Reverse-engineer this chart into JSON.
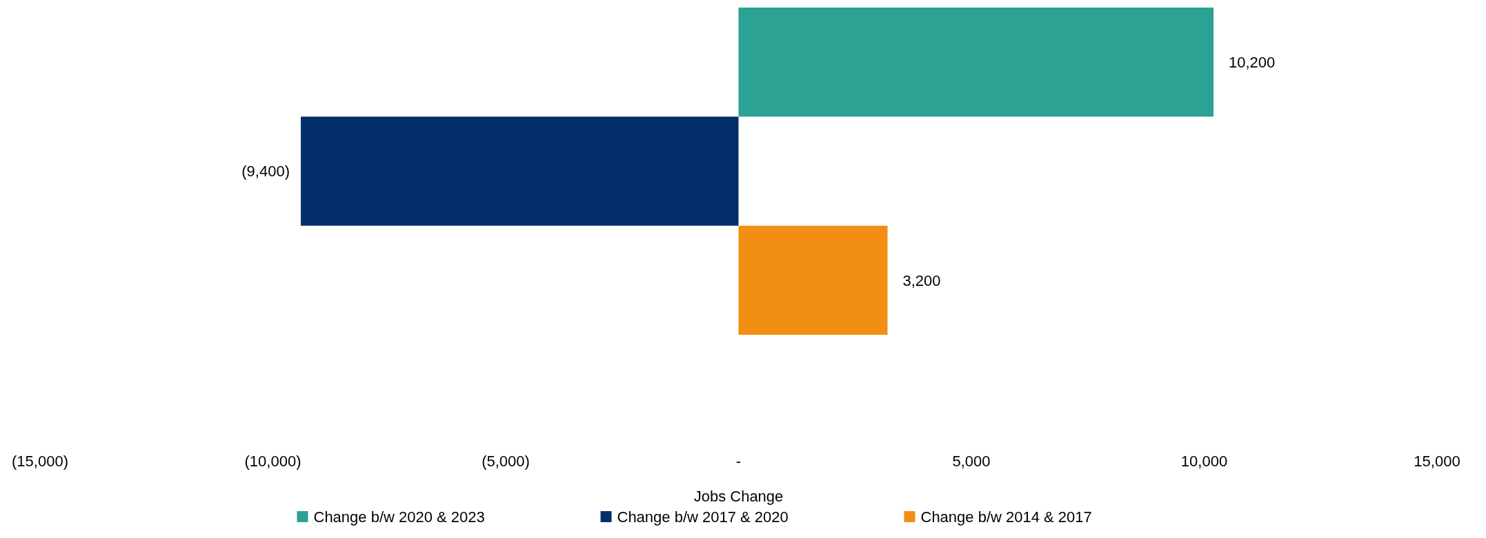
{
  "chart_data": {
    "type": "bar",
    "orientation": "horizontal",
    "xlabel": "Jobs Change",
    "categories": [
      null
    ],
    "series": [
      {
        "name": "Change b/w 2020 & 2023",
        "color": "#2ba293",
        "values": [
          10200
        ],
        "value_labels": [
          "10,200"
        ]
      },
      {
        "name": "Change b/w 2017 & 2020",
        "color": "#022f6a",
        "values": [
          -9400
        ],
        "value_labels": [
          "(9,400)"
        ]
      },
      {
        "name": "Change b/w 2014 & 2017",
        "color": "#f28e13",
        "values": [
          3200
        ],
        "value_labels": [
          "3,200"
        ]
      }
    ],
    "xlim": [
      -15000,
      15000
    ],
    "xticks": [
      {
        "value": -15000,
        "label": "(15,000)"
      },
      {
        "value": -10000,
        "label": "(10,000)"
      },
      {
        "value": -5000,
        "label": "(5,000)"
      },
      {
        "value": 0,
        "label": "-"
      },
      {
        "value": 5000,
        "label": "5,000"
      },
      {
        "value": 10000,
        "label": "10,000"
      },
      {
        "value": 15000,
        "label": "15,000"
      }
    ],
    "grid": false,
    "legend": "bottom"
  }
}
